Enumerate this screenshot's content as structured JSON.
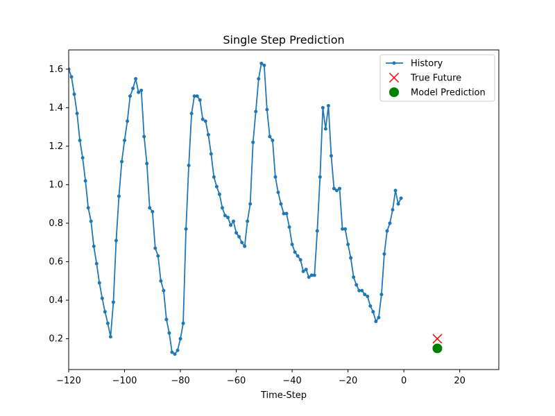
{
  "chart_data": {
    "type": "line",
    "title": "Single Step Prediction",
    "xlabel": "Time-Step",
    "ylabel": "",
    "xlim": [
      -120,
      34
    ],
    "ylim": [
      0.04,
      1.7
    ],
    "x_ticks": [
      -120,
      -100,
      -80,
      -60,
      -40,
      -20,
      0,
      20
    ],
    "y_ticks": [
      0.2,
      0.4,
      0.6,
      0.8,
      1.0,
      1.2,
      1.4,
      1.6
    ],
    "x_tick_labels": [
      "−120",
      "−100",
      "−80",
      "−60",
      "−40",
      "−20",
      "0",
      "20"
    ],
    "y_tick_labels": [
      "0.2",
      "0.4",
      "0.6",
      "0.8",
      "1.0",
      "1.2",
      "1.4",
      "1.6"
    ],
    "grid": false,
    "legend_position": "top-right",
    "series": [
      {
        "name": "History",
        "kind": "line-with-points",
        "color": "#1f77b4",
        "x": [
          -120,
          -119,
          -118,
          -117,
          -116,
          -115,
          -114,
          -113,
          -112,
          -111,
          -110,
          -109,
          -108,
          -107,
          -106,
          -105,
          -104,
          -103,
          -102,
          -101,
          -100,
          -99,
          -98,
          -97,
          -96,
          -95,
          -94,
          -93,
          -92,
          -91,
          -90,
          -89,
          -88,
          -87,
          -86,
          -85,
          -84,
          -83,
          -82,
          -81,
          -80,
          -79,
          -78,
          -77,
          -76,
          -75,
          -74,
          -73,
          -72,
          -71,
          -70,
          -69,
          -68,
          -67,
          -66,
          -65,
          -64,
          -63,
          -62,
          -61,
          -60,
          -59,
          -58,
          -57,
          -56,
          -55,
          -54,
          -53,
          -52,
          -51,
          -50,
          -49,
          -48,
          -47,
          -46,
          -45,
          -44,
          -43,
          -42,
          -41,
          -40,
          -39,
          -38,
          -37,
          -36,
          -35,
          -34,
          -33,
          -32,
          -31,
          -30,
          -29,
          -28,
          -27,
          -26,
          -25,
          -24,
          -23,
          -22,
          -21,
          -20,
          -19,
          -18,
          -17,
          -16,
          -15,
          -14,
          -13,
          -12,
          -11,
          -10,
          -9,
          -8,
          -7,
          -6,
          -5,
          -4,
          -3,
          -2,
          -1
        ],
        "y": [
          1.6,
          1.56,
          1.47,
          1.37,
          1.23,
          1.14,
          1.02,
          0.88,
          0.81,
          0.68,
          0.59,
          0.49,
          0.41,
          0.34,
          0.28,
          0.21,
          0.39,
          0.71,
          0.94,
          1.12,
          1.23,
          1.33,
          1.46,
          1.5,
          1.55,
          1.48,
          1.49,
          1.25,
          1.11,
          0.88,
          0.86,
          0.67,
          0.63,
          0.5,
          0.45,
          0.3,
          0.23,
          0.13,
          0.12,
          0.14,
          0.2,
          0.28,
          0.77,
          1.1,
          1.37,
          1.46,
          1.46,
          1.44,
          1.34,
          1.33,
          1.26,
          1.16,
          1.04,
          0.99,
          0.95,
          0.88,
          0.84,
          0.83,
          0.79,
          0.81,
          0.75,
          0.73,
          0.7,
          0.68,
          0.81,
          0.9,
          1.22,
          1.38,
          1.55,
          1.63,
          1.62,
          1.39,
          1.25,
          1.23,
          1.04,
          0.96,
          0.9,
          0.85,
          0.85,
          0.78,
          0.69,
          0.65,
          0.63,
          0.61,
          0.55,
          0.56,
          0.52,
          0.53,
          0.53,
          0.76,
          1.04,
          1.4,
          1.29,
          1.41,
          1.15,
          0.98,
          0.97,
          0.98,
          0.77,
          0.77,
          0.69,
          0.62,
          0.52,
          0.48,
          0.45,
          0.45,
          0.43,
          0.42,
          0.37,
          0.34,
          0.29,
          0.31,
          0.43,
          0.64,
          0.76,
          0.8,
          0.87,
          0.97,
          0.9,
          0.93
        ]
      },
      {
        "name": "True Future",
        "kind": "marker-x",
        "color": "#ff0000",
        "x": [
          12
        ],
        "y": [
          0.2
        ]
      },
      {
        "name": "Model Prediction",
        "kind": "marker-circle",
        "color": "#008000",
        "x": [
          12
        ],
        "y": [
          0.15
        ]
      }
    ]
  }
}
